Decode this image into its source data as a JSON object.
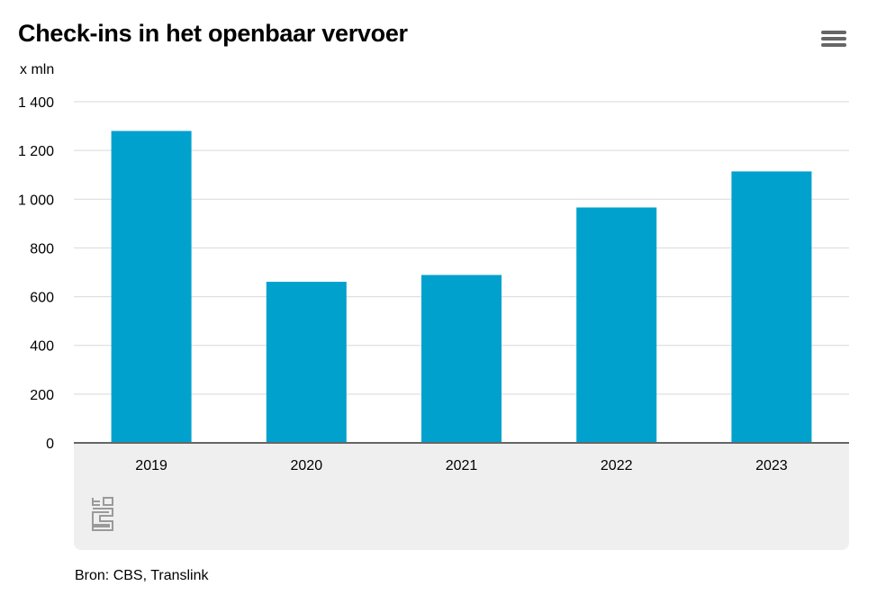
{
  "header": {
    "title": "Check-ins in het openbaar vervoer",
    "unit": "x mln"
  },
  "menu_icon": "hamburger-menu-icon",
  "source": "Bron: CBS, Translink",
  "logo": {
    "icon": "cbs-logo-icon",
    "text": "cbs"
  },
  "colors": {
    "bar": "#00a1cd",
    "grid": "#d9d9d9",
    "axis": "#666666",
    "footer_bg": "#efefef"
  },
  "chart_data": {
    "type": "bar",
    "title": "Check-ins in het openbaar vervoer",
    "ylabel": "x mln",
    "xlabel": "",
    "categories": [
      "2019",
      "2020",
      "2021",
      "2022",
      "2023"
    ],
    "values": [
      1280,
      661,
      689,
      966,
      1114
    ],
    "ylim": [
      0,
      1400
    ],
    "yticks": [
      0,
      200,
      400,
      600,
      800,
      1000,
      1200,
      1400
    ],
    "ytick_labels": [
      "0",
      "200",
      "400",
      "600",
      "800",
      "1 000",
      "1 200",
      "1 400"
    ],
    "grid": true,
    "legend": "none"
  }
}
